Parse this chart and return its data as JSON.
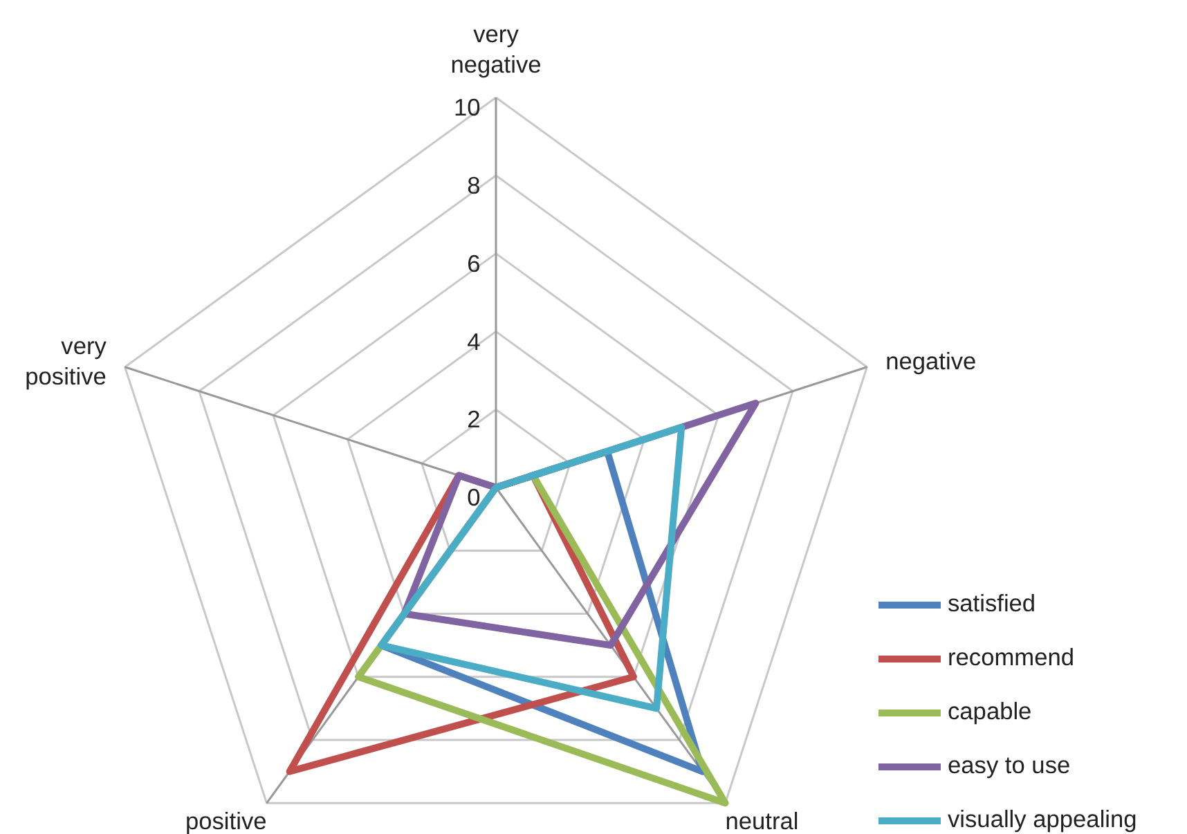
{
  "chart_data": {
    "type": "radar",
    "categories": [
      "very\nnegative",
      "negative",
      "neutral",
      "positive",
      "very\npositive"
    ],
    "series": [
      {
        "name": "satisfied",
        "color": "#4f81bd",
        "values": [
          0,
          3,
          9,
          5,
          0
        ]
      },
      {
        "name": "recommend",
        "color": "#c0504d",
        "values": [
          0,
          1,
          6,
          9,
          1
        ]
      },
      {
        "name": "capable",
        "color": "#9bbb59",
        "values": [
          0,
          1,
          10,
          6,
          0
        ]
      },
      {
        "name": "easy to use",
        "color": "#8064a2",
        "values": [
          0,
          7,
          5,
          4,
          1
        ]
      },
      {
        "name": "visually appealing",
        "color": "#4bacc6",
        "values": [
          0,
          5,
          7,
          5,
          0
        ]
      }
    ],
    "ylim": [
      0,
      10
    ],
    "yticks": [
      0,
      2,
      4,
      6,
      8,
      10
    ],
    "grid": true,
    "legend": "right",
    "marker": "none"
  }
}
